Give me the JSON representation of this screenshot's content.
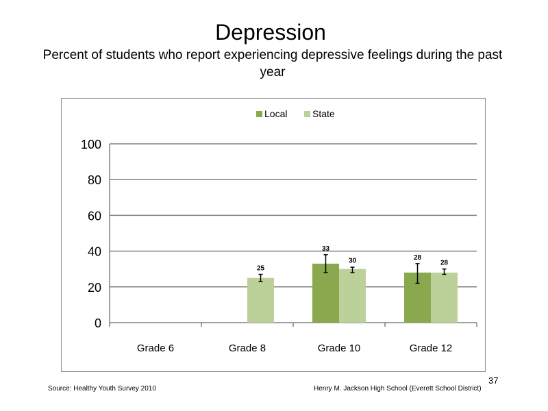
{
  "slide": {
    "title": "Depression",
    "subtitle": "Percent of students who report experiencing  depressive feelings during the past year",
    "footer_source": "Source: Healthy Youth Survey 2010",
    "footer_school": "Henry M. Jackson High School (Everett School District)",
    "page_number": "37"
  },
  "chart_data": {
    "type": "bar",
    "title": "",
    "xlabel": "",
    "ylabel": "",
    "ylim": [
      0,
      100
    ],
    "yticks": [
      0,
      20,
      40,
      60,
      80,
      100
    ],
    "categories": [
      "Grade 6",
      "Grade 8",
      "Grade 10",
      "Grade 12"
    ],
    "series": [
      {
        "name": "Local",
        "color": "#8aa84e",
        "values": [
          null,
          null,
          33,
          28
        ],
        "labels": [
          "",
          "",
          "33",
          "28"
        ],
        "error_low": [
          null,
          null,
          28,
          22
        ],
        "error_high": [
          null,
          null,
          38,
          33
        ]
      },
      {
        "name": "State",
        "color": "#bcd19a",
        "values": [
          null,
          25,
          30,
          28
        ],
        "labels": [
          "",
          "25",
          "30",
          "28"
        ],
        "error_low": [
          null,
          23,
          28,
          27
        ],
        "error_high": [
          null,
          27,
          31,
          30
        ]
      }
    ],
    "grid": true,
    "legend_position": "top-center"
  }
}
